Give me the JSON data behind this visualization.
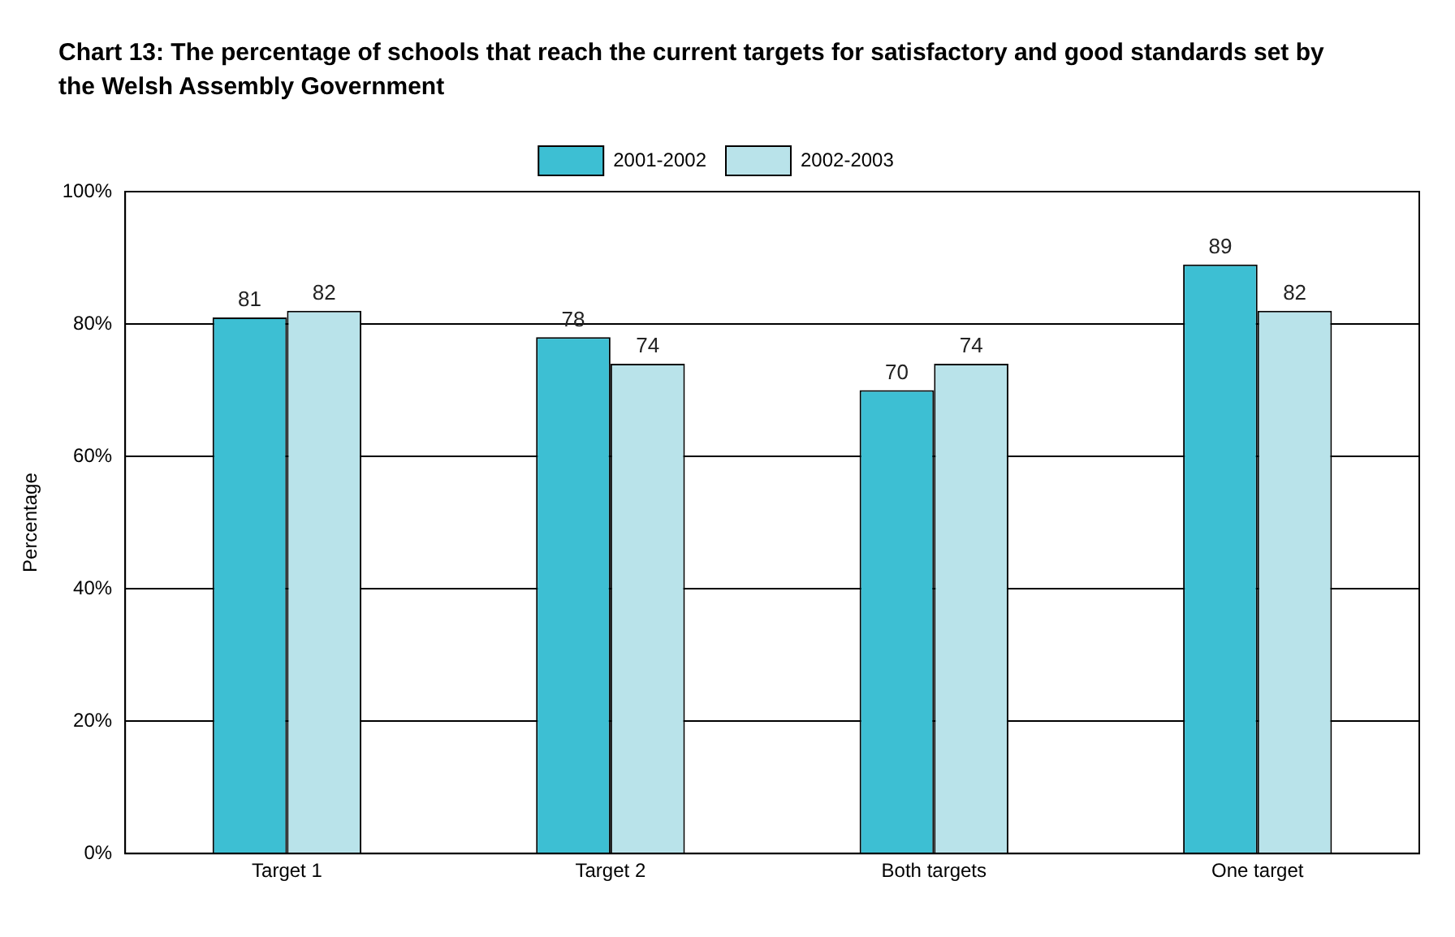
{
  "chart_data": {
    "type": "bar",
    "title": "Chart 13:  The percentage of schools that reach the current targets for satisfactory and good standards set by the Welsh Assembly Government",
    "ylabel": "Percentage",
    "categories": [
      "Target 1",
      "Target 2",
      "Both targets",
      "One target"
    ],
    "series": [
      {
        "name": "2001-2002",
        "color": "#3dbfd3",
        "values": [
          81,
          78,
          70,
          89
        ]
      },
      {
        "name": "2002-2003",
        "color": "#b9e3ea",
        "values": [
          82,
          74,
          74,
          82
        ]
      }
    ],
    "ylim": [
      0,
      100
    ],
    "yticks": [
      {
        "value": 0,
        "label": "0%"
      },
      {
        "value": 20,
        "label": "20%"
      },
      {
        "value": 40,
        "label": "40%"
      },
      {
        "value": 60,
        "label": "60%"
      },
      {
        "value": 80,
        "label": "80%"
      },
      {
        "value": 100,
        "label": "100%"
      }
    ],
    "grid": "y",
    "legend": "top",
    "data_labels": true
  }
}
